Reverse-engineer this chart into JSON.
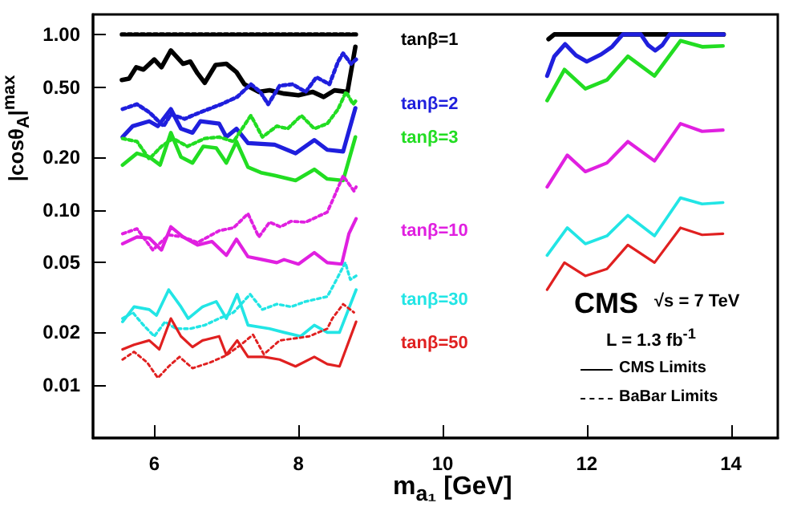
{
  "chart_data": {
    "type": "line",
    "xlabel": "m$_{a₁}$ [GeV]",
    "ylabel": "|cosθ$_{A}$|$^{max}$",
    "xlim": [
      5.15,
      14.65
    ],
    "xticks": [
      6,
      8,
      10,
      12,
      14
    ],
    "ylim": [
      0.005,
      1.3
    ],
    "yticks": [
      {
        "value": 0.01,
        "label": "0.01"
      },
      {
        "value": 0.02,
        "label": "0.02"
      },
      {
        "value": 0.05,
        "label": "0.05"
      },
      {
        "value": 0.1,
        "label": "0.10"
      },
      {
        "value": 0.2,
        "label": "0.20"
      },
      {
        "value": 0.5,
        "label": "0.50"
      },
      {
        "value": 1,
        "label": "1.00"
      }
    ],
    "log": "y",
    "marker": "none",
    "annotations": [
      "CMS",
      "√s = 7 TeV",
      "L = 1.3 fb$^{-1}$",
      "CMS Limits",
      "BaBar Limits"
    ],
    "series": [
      {
        "name": "tanβ=1",
        "color": "#000000",
        "line_style": "solid",
        "x": [
          5.55,
          5.65,
          5.75,
          5.85,
          6.0,
          6.1,
          6.23,
          6.4,
          6.5,
          6.6,
          6.7,
          6.85,
          7.0,
          7.14,
          7.25,
          7.45,
          7.6,
          7.8,
          8.0,
          8.2,
          8.35,
          8.5,
          8.68,
          8.79,
          10,
          11.47,
          11.55,
          13.9
        ],
        "values": [
          0.55,
          0.56,
          0.65,
          0.63,
          0.72,
          0.65,
          0.81,
          0.68,
          0.7,
          0.6,
          0.53,
          0.67,
          0.68,
          0.61,
          0.52,
          0.47,
          0.48,
          0.46,
          0.45,
          0.47,
          0.44,
          0.48,
          0.47,
          0.85,
          null,
          0.94,
          1.0,
          1.0
        ]
      },
      {
        "color": "#000000",
        "line_style": "dotted",
        "x": [
          5.55,
          8.8
        ],
        "values": [
          1.0,
          1.0
        ]
      },
      {
        "name": "tanβ=2",
        "color": "#1f1fdd",
        "line_style": "solid",
        "x": [
          5.56,
          5.7,
          5.93,
          6.05,
          6.23,
          6.37,
          6.53,
          6.64,
          6.9,
          7.0,
          7.14,
          7.3,
          7.67,
          7.96,
          8.22,
          8.4,
          8.62,
          8.79,
          10,
          11.45,
          11.55,
          11.7,
          11.85,
          12.0,
          12.2,
          12.35,
          12.5,
          12.75,
          12.85,
          12.95,
          13.05,
          13.15,
          13.9
        ],
        "values": [
          0.26,
          0.3,
          0.32,
          0.3,
          0.375,
          0.29,
          0.275,
          0.32,
          0.31,
          0.26,
          0.29,
          0.24,
          0.235,
          0.21,
          0.25,
          0.22,
          0.215,
          0.38,
          null,
          0.58,
          0.75,
          0.88,
          0.76,
          0.7,
          0.77,
          0.85,
          1.0,
          1.0,
          0.87,
          0.81,
          0.87,
          1.0,
          1.0
        ]
      },
      {
        "color": "#1f1fdd",
        "line_style": "dotted",
        "x": [
          5.56,
          5.76,
          5.93,
          6.13,
          6.23,
          6.42,
          6.64,
          6.93,
          7.15,
          7.34,
          7.47,
          7.58,
          7.74,
          7.92,
          8.1,
          8.25,
          8.43,
          8.55,
          8.62,
          8.73,
          8.8
        ],
        "values": [
          0.375,
          0.4,
          0.36,
          0.3,
          0.35,
          0.33,
          0.36,
          0.4,
          0.44,
          0.52,
          0.47,
          0.4,
          0.51,
          0.52,
          0.47,
          0.57,
          0.52,
          0.7,
          0.78,
          0.68,
          0.72
        ]
      },
      {
        "name": "tanβ=3",
        "color": "#22dd22",
        "line_style": "solid",
        "x": [
          5.56,
          5.76,
          5.93,
          6.08,
          6.23,
          6.37,
          6.53,
          6.68,
          6.86,
          7.0,
          7.14,
          7.3,
          7.48,
          7.67,
          7.96,
          8.22,
          8.4,
          8.62,
          8.79,
          10,
          11.45,
          11.69,
          11.98,
          12.28,
          12.57,
          12.94,
          13.3,
          13.6,
          13.89
        ],
        "values": [
          0.18,
          0.21,
          0.2,
          0.18,
          0.275,
          0.2,
          0.185,
          0.23,
          0.225,
          0.185,
          0.245,
          0.175,
          0.163,
          0.157,
          0.147,
          0.17,
          0.15,
          0.147,
          0.26,
          null,
          0.42,
          0.63,
          0.49,
          0.55,
          0.75,
          0.58,
          0.92,
          0.85,
          0.86
        ]
      },
      {
        "color": "#22dd22",
        "line_style": "dotted",
        "x": [
          5.56,
          5.76,
          5.93,
          6.1,
          6.26,
          6.46,
          6.7,
          6.9,
          7.1,
          7.34,
          7.5,
          7.7,
          7.85,
          8.04,
          8.22,
          8.4,
          8.55,
          8.66,
          8.76,
          8.8
        ],
        "values": [
          0.255,
          0.245,
          0.195,
          0.23,
          0.255,
          0.23,
          0.255,
          0.26,
          0.245,
          0.345,
          0.26,
          0.3,
          0.29,
          0.345,
          0.29,
          0.31,
          0.375,
          0.47,
          0.4,
          0.42
        ]
      },
      {
        "name": "tanβ=10",
        "color": "#e020e0",
        "line_style": "solid",
        "x": [
          5.56,
          5.76,
          5.93,
          6.1,
          6.23,
          6.4,
          6.6,
          6.8,
          7.0,
          7.14,
          7.3,
          7.5,
          7.7,
          7.8,
          8.0,
          8.22,
          8.4,
          8.6,
          8.7,
          8.8,
          10,
          11.45,
          11.73,
          11.98,
          12.28,
          12.57,
          12.94,
          13.3,
          13.6,
          13.89
        ],
        "values": [
          0.064,
          0.07,
          0.069,
          0.059,
          0.08,
          0.07,
          0.063,
          0.066,
          0.055,
          0.068,
          0.054,
          0.052,
          0.05,
          0.052,
          0.049,
          0.057,
          0.05,
          0.049,
          0.073,
          0.089,
          null,
          0.135,
          0.205,
          0.165,
          0.185,
          0.245,
          0.19,
          0.31,
          0.28,
          0.285
        ]
      },
      {
        "color": "#e020e0",
        "line_style": "dotted",
        "x": [
          5.56,
          5.76,
          5.98,
          6.2,
          6.4,
          6.6,
          6.9,
          7.1,
          7.3,
          7.45,
          7.6,
          7.75,
          7.9,
          8.1,
          8.4,
          8.5,
          8.62,
          8.77,
          8.8
        ],
        "values": [
          0.073,
          0.078,
          0.059,
          0.072,
          0.07,
          0.065,
          0.076,
          0.079,
          0.095,
          0.07,
          0.085,
          0.08,
          0.086,
          0.085,
          0.097,
          0.12,
          0.156,
          0.128,
          0.135
        ]
      },
      {
        "name": "tanβ=30",
        "color": "#22e5e5",
        "line_style": "solid",
        "x": [
          5.56,
          5.72,
          5.93,
          6.03,
          6.2,
          6.37,
          6.47,
          6.67,
          6.86,
          7.0,
          7.15,
          7.3,
          7.6,
          7.8,
          8.03,
          8.22,
          8.4,
          8.57,
          8.8,
          10,
          11.45,
          11.73,
          11.98,
          12.28,
          12.57,
          12.94,
          13.3,
          13.6,
          13.89
        ],
        "values": [
          0.023,
          0.028,
          0.027,
          0.025,
          0.035,
          0.028,
          0.024,
          0.028,
          0.03,
          0.024,
          0.033,
          0.022,
          0.021,
          0.02,
          0.019,
          0.022,
          0.02,
          0.02,
          0.035,
          null,
          0.055,
          0.079,
          0.064,
          0.071,
          0.093,
          0.071,
          0.117,
          0.108,
          0.11
        ]
      },
      {
        "color": "#22e5e5",
        "line_style": "dotted",
        "x": [
          5.56,
          5.7,
          5.85,
          6.0,
          6.15,
          6.3,
          6.5,
          6.7,
          6.9,
          7.1,
          7.33,
          7.5,
          7.7,
          7.9,
          8.1,
          8.4,
          8.5,
          8.65,
          8.72,
          8.8
        ],
        "values": [
          0.024,
          0.026,
          0.022,
          0.019,
          0.023,
          0.021,
          0.021,
          0.022,
          0.024,
          0.026,
          0.033,
          0.027,
          0.029,
          0.028,
          0.03,
          0.032,
          0.038,
          0.05,
          0.04,
          0.042
        ]
      },
      {
        "name": "tanβ=50",
        "color": "#e02020",
        "line_style": "solid",
        "x": [
          5.56,
          5.72,
          5.93,
          6.07,
          6.23,
          6.37,
          6.53,
          6.67,
          6.9,
          7.0,
          7.15,
          7.3,
          7.52,
          7.74,
          7.96,
          8.22,
          8.4,
          8.57,
          8.8,
          10,
          11.45,
          11.69,
          11.98,
          12.28,
          12.57,
          12.94,
          13.3,
          13.6,
          13.89
        ],
        "values": [
          0.016,
          0.017,
          0.018,
          0.016,
          0.024,
          0.019,
          0.0165,
          0.018,
          0.019,
          0.0149,
          0.018,
          0.0145,
          0.0145,
          0.014,
          0.0128,
          0.0145,
          0.0132,
          0.0128,
          0.023,
          null,
          0.035,
          0.05,
          0.042,
          0.046,
          0.063,
          0.05,
          0.079,
          0.072,
          0.073
        ]
      },
      {
        "color": "#e02020",
        "line_style": "dotted",
        "x": [
          5.56,
          5.72,
          5.9,
          6.05,
          6.2,
          6.35,
          6.53,
          6.78,
          7.0,
          7.2,
          7.37,
          7.52,
          7.74,
          7.96,
          8.15,
          8.4,
          8.47,
          8.62,
          8.77
        ],
        "values": [
          0.014,
          0.0155,
          0.0135,
          0.011,
          0.0128,
          0.0145,
          0.0125,
          0.0135,
          0.0148,
          0.017,
          0.0194,
          0.015,
          0.018,
          0.0185,
          0.019,
          0.021,
          0.024,
          0.029,
          0.026
        ]
      }
    ]
  }
}
